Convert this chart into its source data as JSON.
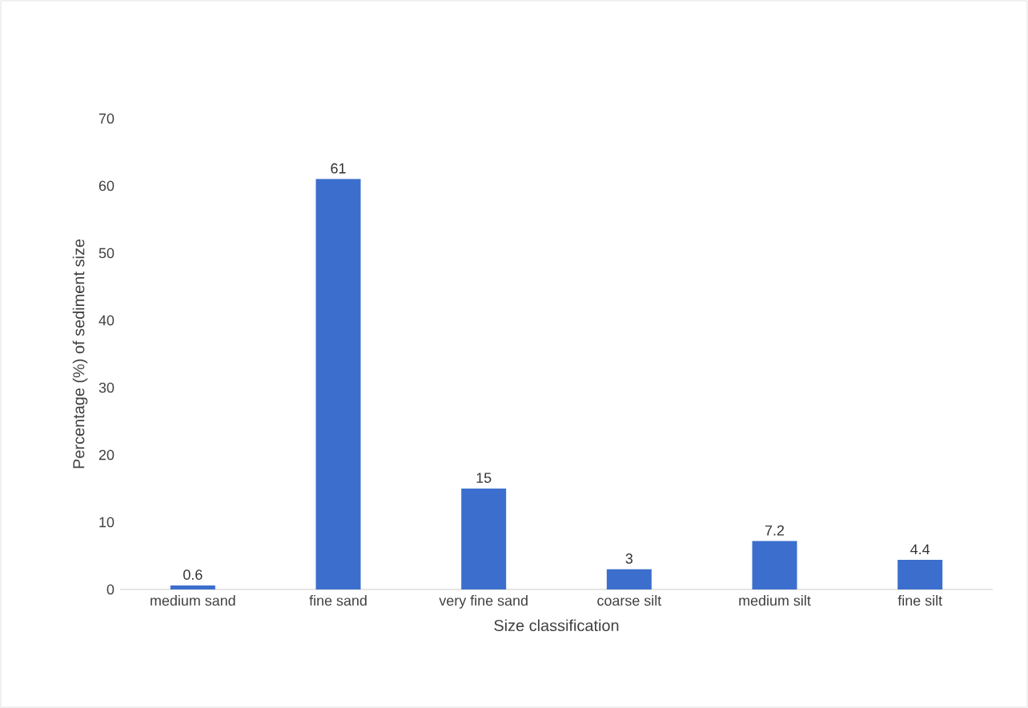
{
  "chart_data": {
    "type": "bar",
    "xlabel": "Size classification",
    "ylabel": "Percentage (%) of sediment size",
    "categories": [
      "medium sand",
      "fine sand",
      "very fine sand",
      "coarse silt",
      "medium silt",
      "fine silt"
    ],
    "values": [
      0.6,
      61,
      15,
      3,
      7.2,
      4.4
    ],
    "color": "#3c6fcd",
    "ylim": [
      0,
      70
    ],
    "yticks": [
      0,
      10,
      20,
      30,
      40,
      50,
      60,
      70
    ],
    "grid": false,
    "data_labels": true
  }
}
